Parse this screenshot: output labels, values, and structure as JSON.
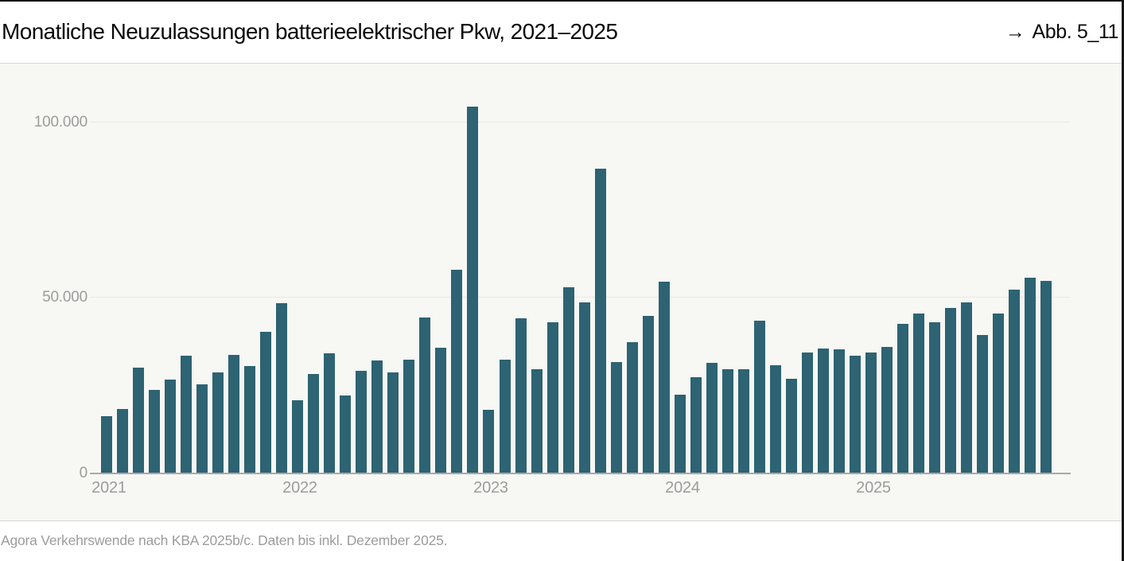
{
  "header": {
    "title": "Monatliche Neuzulassungen batterieelektrischer Pkw, 2021–2025",
    "figure_ref_arrow": "→",
    "figure_ref": "Abb. 5_11"
  },
  "footer": {
    "source": "Agora Verkehrswende nach KBA 2025b/c. Daten bis inkl. Dezember 2025."
  },
  "chart_data": {
    "type": "bar",
    "title": "Monatliche Neuzulassungen batterieelektrischer Pkw, 2021–2025",
    "bar_color": "#2d6372",
    "background_color": "#f7f7f4",
    "grid": true,
    "legend": false,
    "ylim": [
      0,
      116000
    ],
    "y_axis": {
      "ticks": [
        {
          "value": 0,
          "label": "0"
        },
        {
          "value": 50000,
          "label": "50.000"
        },
        {
          "value": 100000,
          "label": "100.000"
        }
      ]
    },
    "x_axis": {
      "tick_labels": [
        "2021",
        "2022",
        "2023",
        "2024",
        "2025"
      ],
      "tick_month_indices": [
        0,
        12,
        24,
        36,
        48
      ]
    },
    "categories": [
      "2021-01",
      "2021-02",
      "2021-03",
      "2021-04",
      "2021-05",
      "2021-06",
      "2021-07",
      "2021-08",
      "2021-09",
      "2021-10",
      "2021-11",
      "2021-12",
      "2022-01",
      "2022-02",
      "2022-03",
      "2022-04",
      "2022-05",
      "2022-06",
      "2022-07",
      "2022-08",
      "2022-09",
      "2022-10",
      "2022-11",
      "2022-12",
      "2023-01",
      "2023-02",
      "2023-03",
      "2023-04",
      "2023-05",
      "2023-06",
      "2023-07",
      "2023-08",
      "2023-09",
      "2023-10",
      "2023-11",
      "2023-12",
      "2024-01",
      "2024-02",
      "2024-03",
      "2024-04",
      "2024-05",
      "2024-06",
      "2024-07",
      "2024-08",
      "2024-09",
      "2024-10",
      "2024-11",
      "2024-12",
      "2025-01",
      "2025-02",
      "2025-03",
      "2025-04",
      "2025-05",
      "2025-06",
      "2025-07",
      "2025-08",
      "2025-09",
      "2025-10",
      "2025-11",
      "2025-12"
    ],
    "values": [
      16315,
      18278,
      30101,
      23816,
      26786,
      33420,
      25464,
      28860,
      33655,
      30560,
      40270,
      48436,
      20892,
      28337,
      34112,
      22175,
      29182,
      32234,
      28815,
      32304,
      44389,
      35800,
      57980,
      104325,
      18136,
      32475,
      44125,
      29740,
      43048,
      52988,
      48682,
      86649,
      31714,
      37334,
      44942,
      54654,
      22474,
      27479,
      31384,
      29668,
      29708,
      43412,
      30762,
      27024,
      34479,
      35491,
      35329,
      33561,
      34498,
      35949,
      42521,
      45535,
      43060,
      47163,
      48614,
      39367,
      45495,
      52425,
      55820,
      54790
    ]
  }
}
